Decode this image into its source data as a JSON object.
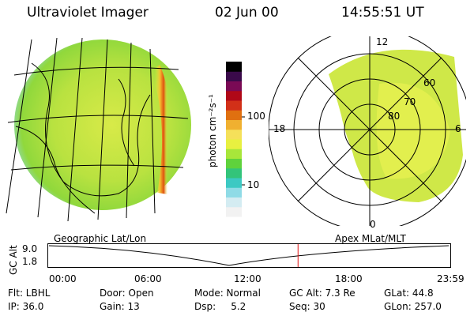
{
  "header": {
    "title": "Ultraviolet Imager",
    "date": "02 Jun 00",
    "time": "14:55:51 UT"
  },
  "colorbar": {
    "label": "photon cm⁻²s⁻¹",
    "ticks": [
      "100",
      "10"
    ],
    "colors": [
      "#f2f2f2",
      "#d4ecf2",
      "#8fdbe6",
      "#3cc9c3",
      "#33c47a",
      "#5fd23c",
      "#a8e63a",
      "#e8f040",
      "#f5e05a",
      "#f0b030",
      "#e07010",
      "#d23018",
      "#b00818",
      "#7a0a55",
      "#3a0a4a",
      "#000000"
    ]
  },
  "left_panel": {
    "caption": "Geographic Lat/Lon"
  },
  "right_panel": {
    "caption": "Apex MLat/MLT",
    "mlt_labels": [
      "12",
      "18",
      "6",
      "0"
    ],
    "lat_labels": [
      "60",
      "70",
      "80"
    ]
  },
  "timeline": {
    "ylabel": "GC Alt",
    "y_ticks": [
      "9.0",
      "1.8"
    ],
    "x_ticks": [
      "00:00",
      "06:00",
      "12:00",
      "18:00",
      "23:59"
    ],
    "marker_time_hours": 14.93
  },
  "info": {
    "flt": "Flt: LBHL",
    "door": "Door: Open",
    "mode": "Mode: Normal",
    "gc_alt": "GC Alt: 7.3 Re",
    "glat": "GLat:  44.8",
    "ip": "IP: 36.0",
    "gain": "Gain: 13",
    "dsp": "Dsp:     5.2",
    "seq": "Seq: 30",
    "glon": "GLon: 257.0"
  }
}
